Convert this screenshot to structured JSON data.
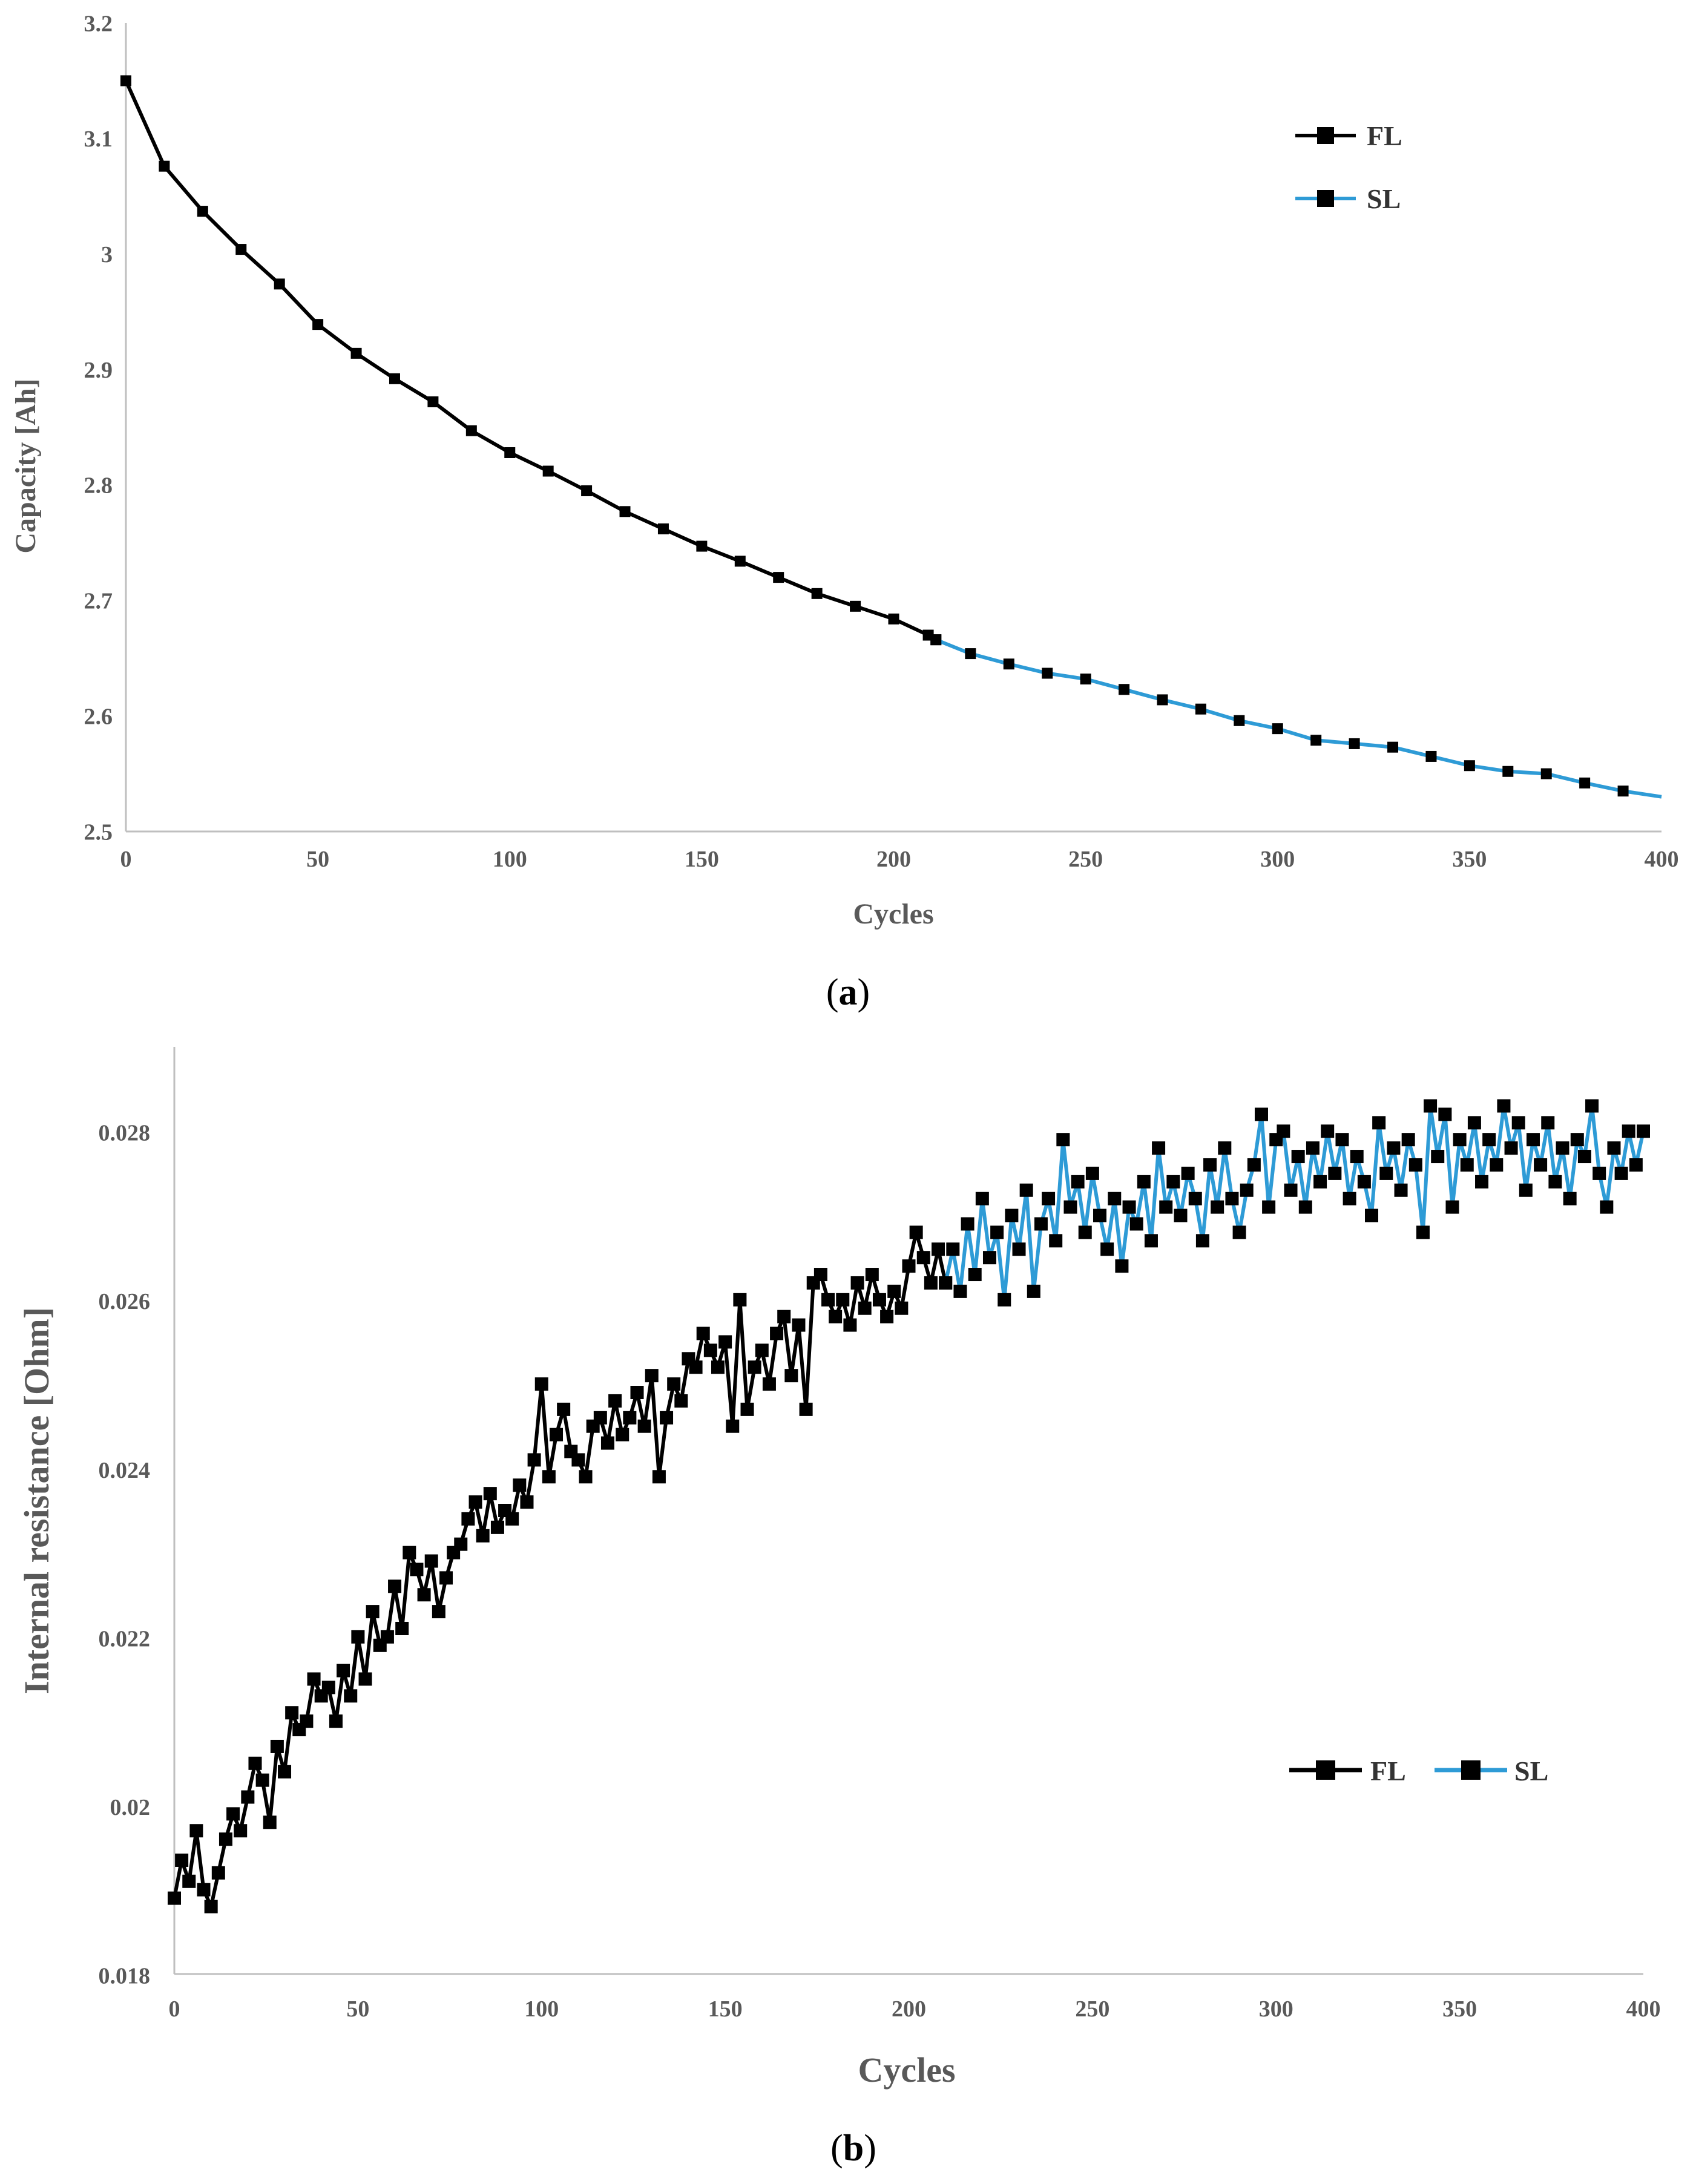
{
  "chart_data": [
    {
      "type": "line",
      "caption": {
        "open": "(",
        "letter": "a",
        "close": ")"
      },
      "xlabel": "Cycles",
      "ylabel": "Capacity [Ah]",
      "xlim": [
        0,
        400
      ],
      "ylim": [
        2.5,
        3.2
      ],
      "xticks": [
        0,
        50,
        100,
        150,
        200,
        250,
        300,
        350,
        400
      ],
      "yticks": [
        2.5,
        2.6,
        2.7,
        2.8,
        2.9,
        3,
        3.1,
        3.2
      ],
      "ytick_labels": [
        "2.5",
        "2.6",
        "2.7",
        "2.8",
        "2.9",
        "3",
        "3.1",
        "3.2"
      ],
      "legend_position": "top-right",
      "series": [
        {
          "name": "FL",
          "color": "#000000",
          "x": [
            0,
            10,
            20,
            30,
            40,
            50,
            60,
            70,
            80,
            90,
            100,
            110,
            120,
            130,
            140,
            150,
            160,
            170,
            180,
            190,
            200,
            209,
            211
          ],
          "y": [
            3.15,
            3.076,
            3.037,
            3.004,
            2.974,
            2.939,
            2.914,
            2.892,
            2.872,
            2.847,
            2.828,
            2.812,
            2.795,
            2.777,
            2.762,
            2.747,
            2.734,
            2.72,
            2.706,
            2.695,
            2.684,
            2.67,
            2.666
          ]
        },
        {
          "name": "SL",
          "color": "#2e9bd6",
          "x": [
            211,
            220,
            230,
            240,
            250,
            260,
            270,
            280,
            290,
            300,
            310,
            320,
            330,
            340,
            350,
            360,
            370,
            380,
            390,
            400
          ],
          "y": [
            2.666,
            2.654,
            2.645,
            2.637,
            2.632,
            2.623,
            2.614,
            2.606,
            2.596,
            2.589,
            2.579,
            2.576,
            2.573,
            2.565,
            2.557,
            2.552,
            2.55,
            2.542,
            2.535,
            2.53
          ],
          "marker_skip_last": true
        }
      ]
    },
    {
      "type": "line",
      "caption": {
        "open": "(",
        "letter": "b",
        "close": ")"
      },
      "xlabel": "Cycles",
      "ylabel": "Internal resistance [Ohm]",
      "xlim": [
        0,
        400
      ],
      "ylim": [
        0.018,
        0.029
      ],
      "xticks": [
        0,
        50,
        100,
        150,
        200,
        250,
        300,
        350,
        400
      ],
      "yticks": [
        0.018,
        0.02,
        0.022,
        0.024,
        0.026,
        0.028
      ],
      "ytick_labels": [
        "0.018",
        "0.02",
        "0.022",
        "0.024",
        "0.026",
        "0.028"
      ],
      "legend_position": "center-right",
      "series": [
        {
          "name": "FL",
          "color": "#000000",
          "x": [
            0,
            2,
            4,
            6,
            8,
            10,
            12,
            14,
            16,
            18,
            20,
            22,
            24,
            26,
            28,
            30,
            32,
            34,
            36,
            38,
            40,
            42,
            44,
            46,
            48,
            50,
            52,
            54,
            56,
            58,
            60,
            62,
            64,
            66,
            68,
            70,
            72,
            74,
            76,
            78,
            80,
            82,
            84,
            86,
            88,
            90,
            92,
            94,
            96,
            98,
            100,
            102,
            104,
            106,
            108,
            110,
            112,
            114,
            116,
            118,
            120,
            122,
            124,
            126,
            128,
            130,
            132,
            134,
            136,
            138,
            140,
            142,
            144,
            146,
            148,
            150,
            152,
            154,
            156,
            158,
            160,
            162,
            164,
            166,
            168,
            170,
            172,
            174,
            176,
            178,
            180,
            182,
            184,
            186,
            188,
            190,
            192,
            194,
            196,
            198,
            200,
            202,
            204,
            206,
            208,
            210
          ],
          "y": [
            0.0189,
            0.01935,
            0.0191,
            0.0197,
            0.019,
            0.0188,
            0.0192,
            0.0196,
            0.0199,
            0.0197,
            0.0201,
            0.0205,
            0.0203,
            0.0198,
            0.0207,
            0.0204,
            0.0211,
            0.0209,
            0.021,
            0.0215,
            0.0213,
            0.0214,
            0.021,
            0.0216,
            0.0213,
            0.022,
            0.0215,
            0.0223,
            0.0219,
            0.022,
            0.0226,
            0.0221,
            0.023,
            0.0228,
            0.0225,
            0.0229,
            0.0223,
            0.0227,
            0.023,
            0.0231,
            0.0234,
            0.0236,
            0.0232,
            0.0237,
            0.0233,
            0.0235,
            0.0234,
            0.0238,
            0.0236,
            0.0241,
            0.025,
            0.0239,
            0.0244,
            0.0247,
            0.0242,
            0.0241,
            0.0239,
            0.0245,
            0.0246,
            0.0243,
            0.0248,
            0.0244,
            0.0246,
            0.0249,
            0.0245,
            0.0251,
            0.0239,
            0.0246,
            0.025,
            0.0248,
            0.0253,
            0.0252,
            0.0256,
            0.0254,
            0.0252,
            0.0255,
            0.0245,
            0.026,
            0.0247,
            0.0252,
            0.0254,
            0.025,
            0.0256,
            0.0258,
            0.0251,
            0.0257,
            0.0247,
            0.0262,
            0.0263,
            0.026,
            0.0258,
            0.026,
            0.0257,
            0.0262,
            0.0259,
            0.0263,
            0.026,
            0.0258,
            0.0261,
            0.0259,
            0.0264,
            0.0268,
            0.0265,
            0.0262,
            0.0266,
            0.0262
          ]
        },
        {
          "name": "SL",
          "color": "#2e9bd6",
          "x": [
            210,
            212,
            214,
            216,
            218,
            220,
            222,
            224,
            226,
            228,
            230,
            232,
            234,
            236,
            238,
            240,
            242,
            244,
            246,
            248,
            250,
            252,
            254,
            256,
            258,
            260,
            262,
            264,
            266,
            268,
            270,
            272,
            274,
            276,
            278,
            280,
            282,
            284,
            286,
            288,
            290,
            292,
            294,
            296,
            298,
            300,
            302,
            304,
            306,
            308,
            310,
            312,
            314,
            316,
            318,
            320,
            322,
            324,
            326,
            328,
            330,
            332,
            334,
            336,
            338,
            340,
            342,
            344,
            346,
            348,
            350,
            352,
            354,
            356,
            358,
            360,
            362,
            364,
            366,
            368,
            370,
            372,
            374,
            376,
            378,
            380,
            382,
            384,
            386,
            388,
            390,
            392,
            394,
            396,
            398,
            400
          ],
          "y": [
            0.0262,
            0.0266,
            0.0261,
            0.0269,
            0.0263,
            0.0272,
            0.0265,
            0.0268,
            0.026,
            0.027,
            0.0266,
            0.0273,
            0.0261,
            0.0269,
            0.0272,
            0.0267,
            0.0279,
            0.0271,
            0.0274,
            0.0268,
            0.0275,
            0.027,
            0.0266,
            0.0272,
            0.0264,
            0.0271,
            0.0269,
            0.0274,
            0.0267,
            0.0278,
            0.0271,
            0.0274,
            0.027,
            0.0275,
            0.0272,
            0.0267,
            0.0276,
            0.0271,
            0.0278,
            0.0272,
            0.0268,
            0.0273,
            0.0276,
            0.0282,
            0.0271,
            0.0279,
            0.028,
            0.0273,
            0.0277,
            0.0271,
            0.0278,
            0.0274,
            0.028,
            0.0275,
            0.0279,
            0.0272,
            0.0277,
            0.0274,
            0.027,
            0.0281,
            0.0275,
            0.0278,
            0.0273,
            0.0279,
            0.0276,
            0.0268,
            0.0283,
            0.0277,
            0.0282,
            0.0271,
            0.0279,
            0.0276,
            0.0281,
            0.0274,
            0.0279,
            0.0276,
            0.0283,
            0.0278,
            0.0281,
            0.0273,
            0.0279,
            0.0276,
            0.0281,
            0.0274,
            0.0278,
            0.0272,
            0.0279,
            0.0277,
            0.0283,
            0.0275,
            0.0271,
            0.0278,
            0.0275,
            0.028,
            0.0276,
            0.028
          ]
        }
      ]
    }
  ]
}
